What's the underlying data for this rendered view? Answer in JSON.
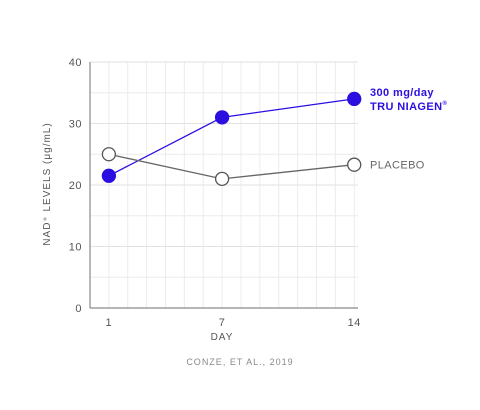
{
  "chart_data": {
    "type": "line",
    "ylabel": "NAD⁺ LEVELS (μg/mL)",
    "xlabel": "DAY",
    "x": [
      1,
      7,
      14
    ],
    "x_tick_labels": [
      "1",
      "7",
      "14"
    ],
    "ylim": [
      0,
      40
    ],
    "y_ticks": [
      0,
      10,
      20,
      30,
      40
    ],
    "grid": true,
    "series": [
      {
        "name_lines": [
          "300 mg/day",
          "TRU NIAGEN"
        ],
        "trademark": "®",
        "values": [
          21.5,
          31,
          34
        ],
        "color": "#2a0fe0",
        "marker": "filled"
      },
      {
        "name_lines": [
          "PLACEBO"
        ],
        "values": [
          25,
          21,
          23.3
        ],
        "color": "#666666",
        "marker": "open"
      }
    ],
    "source": "CONZE, ET AL., 2019"
  }
}
